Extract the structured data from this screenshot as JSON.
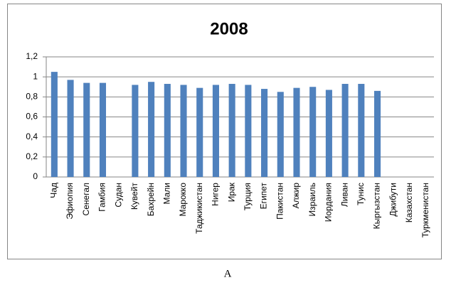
{
  "chart_data": {
    "type": "bar",
    "title": "2008",
    "categories": [
      "Чад",
      "Эфиопия",
      "Сенегал",
      "Гамбия",
      "Судан",
      "Кувейт",
      "Бахрейн",
      "Мали",
      "Марокко",
      "Таджикистан",
      "Нигер",
      "Ирак",
      "Турция",
      "Египет",
      "Пакистан",
      "Алжир",
      "Израиль",
      "Иордания",
      "Ливан",
      "Тунис",
      "Кыргызстан",
      "Джибути",
      "Казахстан",
      "Туркменистан"
    ],
    "values": [
      1.05,
      0.97,
      0.94,
      0.94,
      null,
      0.92,
      0.95,
      0.93,
      0.92,
      0.89,
      0.92,
      0.93,
      0.92,
      0.88,
      0.85,
      0.89,
      0.9,
      0.87,
      0.93,
      0.93,
      0.86,
      null,
      null,
      null
    ],
    "color": "#4f81bd",
    "ylim": [
      0,
      1.2
    ],
    "yticks": [
      0,
      {
        "value": 0.2,
        "label": "0,2"
      },
      {
        "value": 0.4,
        "label": "0,4"
      },
      {
        "value": 0.6,
        "label": "0,6"
      },
      {
        "value": 0.8,
        "label": "0,8"
      },
      1,
      {
        "value": 1.2,
        "label": "1,2"
      }
    ],
    "grid": true
  },
  "caption": "A"
}
